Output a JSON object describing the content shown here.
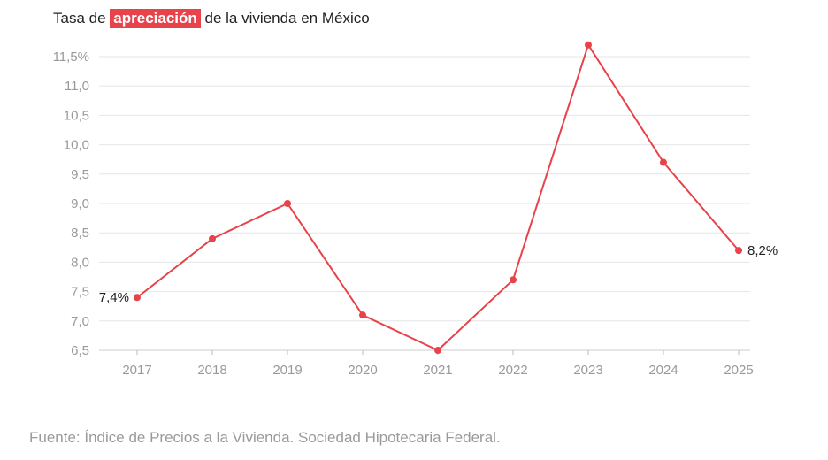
{
  "title": {
    "prefix": "Tasa de",
    "highlight": "apreciación",
    "suffix": "de la vivienda en México"
  },
  "source": "Fuente: Índice de Precios a la Vivienda. Sociedad Hipotecaria Federal.",
  "colors": {
    "line": "#e8424a",
    "highlight_bg": "#e8424a",
    "grid": "#e6e6e6",
    "axis_text": "#999999",
    "label_text": "#222222"
  },
  "chart_data": {
    "type": "line",
    "title": "Tasa de apreciación de la vivienda en México",
    "xlabel": "",
    "ylabel": "",
    "x": [
      "2017",
      "2018",
      "2019",
      "2020",
      "2021",
      "2022",
      "2023",
      "2024",
      "2025"
    ],
    "series": [
      {
        "name": "Tasa de apreciación",
        "values": [
          7.4,
          8.4,
          9.0,
          7.1,
          6.5,
          7.7,
          11.7,
          9.7,
          8.2
        ]
      }
    ],
    "ylim": [
      6.5,
      11.5
    ],
    "yticks": [
      6.5,
      7.0,
      7.5,
      8.0,
      8.5,
      9.0,
      9.5,
      10.0,
      10.5,
      11.0,
      11.5
    ],
    "ytick_labels": [
      "6,5",
      "7,0",
      "7,5",
      "8,0",
      "8,5",
      "9,0",
      "9,5",
      "10,0",
      "10,5",
      "11,0",
      "11,5%"
    ],
    "data_labels": [
      {
        "index": 0,
        "text": "7,4%",
        "side": "left"
      },
      {
        "index": 8,
        "text": "8,2%",
        "side": "right"
      }
    ],
    "grid": true,
    "legend": "none"
  }
}
